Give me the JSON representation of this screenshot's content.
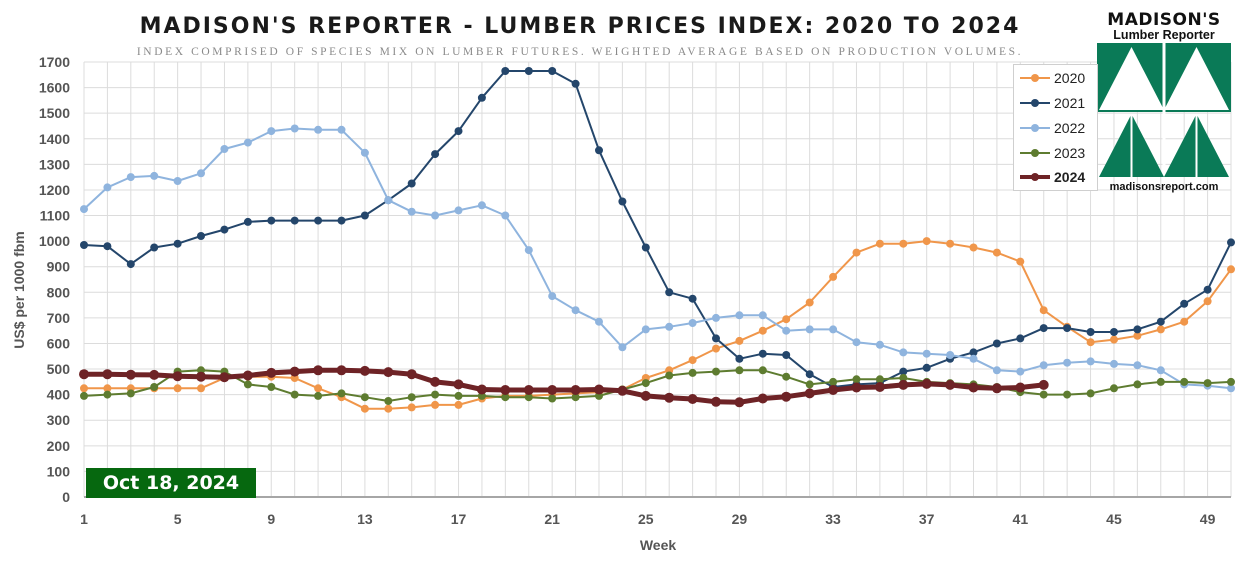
{
  "title": "MADISON'S REPORTER - LUMBER PRICES INDEX: 2020 TO 2024",
  "subtitle": "INDEX COMPRISED OF SPECIES MIX ON LUMBER FUTURES. WEIGHTED AVERAGE BASED ON PRODUCTION VOLUMES.",
  "logo": {
    "line1": "MADISON'S",
    "line2": "Lumber Reporter",
    "url": "madisonsreport.com",
    "colors": {
      "green": "#0a7a57",
      "white": "#ffffff"
    }
  },
  "date_badge": "Oct 18, 2024",
  "colors": {
    "grid": "#dcdcdc",
    "axis": "#a6a6a6",
    "text": "#555555",
    "badge": "#06680f"
  },
  "chart_data": {
    "type": "line",
    "xlabel": "Week",
    "ylabel": "US$ per 1000 fbm",
    "xlim": [
      1,
      50
    ],
    "ylim": [
      0,
      1700
    ],
    "ytick_step": 100,
    "x_ticks": [
      1,
      5,
      9,
      13,
      17,
      21,
      25,
      29,
      33,
      37,
      41,
      45,
      49
    ],
    "grid": "horizontal and vertical",
    "legend_position": "top-right",
    "series": [
      {
        "name": "2020",
        "color": "#f0964a",
        "width": 2,
        "x": [
          1,
          2,
          3,
          4,
          5,
          6,
          7,
          8,
          9,
          10,
          11,
          12,
          13,
          14,
          15,
          16,
          17,
          18,
          19,
          20,
          21,
          22,
          23,
          24,
          25,
          26,
          27,
          28,
          29,
          30,
          31,
          32,
          33,
          34,
          35,
          36,
          37,
          38,
          39,
          40,
          41,
          42,
          43,
          44,
          45,
          46,
          47,
          48,
          49,
          50
        ],
        "values": [
          425,
          425,
          425,
          425,
          425,
          425,
          465,
          470,
          470,
          465,
          425,
          390,
          345,
          345,
          350,
          360,
          360,
          385,
          395,
          395,
          400,
          405,
          410,
          420,
          465,
          495,
          535,
          580,
          610,
          650,
          695,
          760,
          860,
          955,
          990,
          990,
          1000,
          990,
          975,
          955,
          920,
          730,
          665,
          605,
          615,
          630,
          655,
          685,
          765,
          890
        ]
      },
      {
        "name": "2021",
        "color": "#24466b",
        "width": 2,
        "x": [
          1,
          2,
          3,
          4,
          5,
          6,
          7,
          8,
          9,
          10,
          11,
          12,
          13,
          14,
          15,
          16,
          17,
          18,
          19,
          20,
          21,
          22,
          23,
          24,
          25,
          26,
          27,
          28,
          29,
          30,
          31,
          32,
          33,
          34,
          35,
          36,
          37,
          38,
          39,
          40,
          41,
          42,
          43,
          44,
          45,
          46,
          47,
          48,
          49,
          50
        ],
        "values": [
          985,
          980,
          910,
          975,
          990,
          1020,
          1045,
          1075,
          1080,
          1080,
          1080,
          1080,
          1100,
          1160,
          1225,
          1340,
          1430,
          1560,
          1665,
          1665,
          1665,
          1615,
          1355,
          1155,
          975,
          800,
          775,
          620,
          540,
          560,
          555,
          480,
          430,
          440,
          445,
          490,
          505,
          540,
          565,
          600,
          620,
          660,
          660,
          645,
          645,
          655,
          685,
          755,
          810,
          995
        ]
      },
      {
        "name": "2022",
        "color": "#8fb4de",
        "width": 2,
        "x": [
          1,
          2,
          3,
          4,
          5,
          6,
          7,
          8,
          9,
          10,
          11,
          12,
          13,
          14,
          15,
          16,
          17,
          18,
          19,
          20,
          21,
          22,
          23,
          24,
          25,
          26,
          27,
          28,
          29,
          30,
          31,
          32,
          33,
          34,
          35,
          36,
          37,
          38,
          39,
          40,
          41,
          42,
          43,
          44,
          45,
          46,
          47,
          48,
          49,
          50
        ],
        "values": [
          1125,
          1210,
          1250,
          1255,
          1235,
          1265,
          1360,
          1385,
          1430,
          1440,
          1435,
          1435,
          1345,
          1160,
          1115,
          1100,
          1120,
          1140,
          1100,
          965,
          785,
          730,
          685,
          585,
          655,
          665,
          680,
          700,
          710,
          710,
          650,
          655,
          655,
          605,
          595,
          565,
          560,
          555,
          540,
          495,
          490,
          515,
          525,
          530,
          520,
          515,
          495,
          440,
          435,
          425
        ]
      },
      {
        "name": "2023",
        "color": "#5e7c30",
        "width": 2,
        "x": [
          1,
          2,
          3,
          4,
          5,
          6,
          7,
          8,
          9,
          10,
          11,
          12,
          13,
          14,
          15,
          16,
          17,
          18,
          19,
          20,
          21,
          22,
          23,
          24,
          25,
          26,
          27,
          28,
          29,
          30,
          31,
          32,
          33,
          34,
          35,
          36,
          37,
          38,
          39,
          40,
          41,
          42,
          43,
          44,
          45,
          46,
          47,
          48,
          49,
          50
        ],
        "values": [
          395,
          400,
          405,
          430,
          490,
          495,
          490,
          440,
          430,
          400,
          395,
          405,
          390,
          375,
          390,
          400,
          395,
          395,
          390,
          390,
          385,
          390,
          395,
          420,
          445,
          475,
          485,
          490,
          495,
          495,
          470,
          440,
          450,
          460,
          460,
          465,
          450,
          445,
          440,
          430,
          410,
          400,
          400,
          405,
          425,
          440,
          450,
          450,
          445,
          450
        ]
      },
      {
        "name": "2024",
        "color": "#6e2326",
        "width": 5,
        "x": [
          1,
          2,
          3,
          4,
          5,
          6,
          7,
          8,
          9,
          10,
          11,
          12,
          13,
          14,
          15,
          16,
          17,
          18,
          19,
          20,
          21,
          22,
          23,
          24,
          25,
          26,
          27,
          28,
          29,
          30,
          31,
          32,
          33,
          34,
          35,
          36,
          37,
          38,
          39,
          40,
          41,
          42
        ],
        "values": [
          480,
          480,
          478,
          477,
          472,
          470,
          468,
          475,
          485,
          490,
          495,
          495,
          493,
          488,
          480,
          450,
          440,
          420,
          418,
          418,
          418,
          418,
          420,
          415,
          395,
          388,
          383,
          372,
          370,
          385,
          392,
          405,
          418,
          428,
          430,
          438,
          442,
          438,
          428,
          425,
          428,
          438
        ]
      }
    ]
  }
}
